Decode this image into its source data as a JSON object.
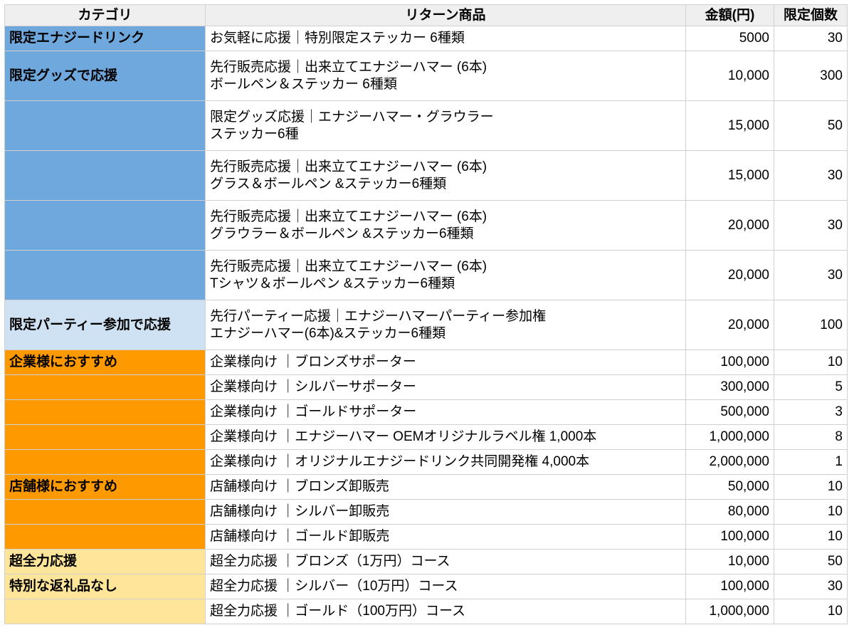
{
  "colors": {
    "blue": "#6fa8dc",
    "light_blue": "#cfe2f3",
    "orange": "#ff9900",
    "yellow": "#ffe599",
    "header": "#efefef"
  },
  "headers": [
    "カテゴリ",
    "リターン商品",
    "金額(円)",
    "限定個数"
  ],
  "rows": [
    {
      "category": "限定エナジードリンク",
      "color": "blue",
      "item": [
        "お気軽に応援｜特別限定ステッカー 6種類"
      ],
      "price": "5000",
      "limit": "30"
    },
    {
      "category": "限定グッズで応援",
      "color": "blue",
      "item": [
        "先行販売応援｜出来立てエナジーハマー (6本)",
        "ボールペン＆ステッカー 6種類"
      ],
      "price": "10,000",
      "limit": "300"
    },
    {
      "category": "",
      "color": "blue",
      "item": [
        "限定グッズ応援｜エナジーハマー・グラウラー",
        "ステッカー6種"
      ],
      "price": "15,000",
      "limit": "50"
    },
    {
      "category": "",
      "color": "blue",
      "item": [
        "先行販売応援｜出来立てエナジーハマー (6本)",
        "グラス＆ボールペン &ステッカー6種類"
      ],
      "price": "15,000",
      "limit": "30"
    },
    {
      "category": "",
      "color": "blue",
      "item": [
        "先行販売応援｜出来立てエナジーハマー (6本)",
        "グラウラー＆ボールペン &ステッカー6種類"
      ],
      "price": "20,000",
      "limit": "30"
    },
    {
      "category": "",
      "color": "blue",
      "item": [
        "先行販売応援｜出来立てエナジーハマー (6本)",
        "Tシャツ＆ボールペン &ステッカー6種類"
      ],
      "price": "20,000",
      "limit": "30"
    },
    {
      "category": "限定パーティー参加で応援",
      "color": "light_blue",
      "item": [
        "先行パーティー応援｜エナジーハマーパーティー参加権",
        "エナジーハマー(6本)&ステッカー6種類"
      ],
      "price": "20,000",
      "limit": "100"
    },
    {
      "category": "企業様におすすめ",
      "color": "orange",
      "item": [
        "企業様向け ｜ブロンズサポーター"
      ],
      "price": "100,000",
      "limit": "10"
    },
    {
      "category": "",
      "color": "orange",
      "item": [
        "企業様向け ｜シルバーサポーター"
      ],
      "price": "300,000",
      "limit": "5"
    },
    {
      "category": "",
      "color": "orange",
      "item": [
        "企業様向け ｜ゴールドサポーター"
      ],
      "price": "500,000",
      "limit": "3"
    },
    {
      "category": "",
      "color": "orange",
      "item": [
        "企業様向け ｜エナジーハマー OEMオリジナルラベル権 1,000本"
      ],
      "price": "1,000,000",
      "limit": "8"
    },
    {
      "category": "",
      "color": "orange",
      "item": [
        "企業様向け ｜オリジナルエナジードリンク共同開発権 4,000本"
      ],
      "price": "2,000,000",
      "limit": "1"
    },
    {
      "category": "店舗様におすすめ",
      "color": "orange",
      "item": [
        "店舗様向け ｜ブロンズ卸販売"
      ],
      "price": "50,000",
      "limit": "10"
    },
    {
      "category": "",
      "color": "orange",
      "item": [
        "店舗様向け ｜シルバー卸販売"
      ],
      "price": "80,000",
      "limit": "10"
    },
    {
      "category": "",
      "color": "orange",
      "item": [
        "店舗様向け ｜ゴールド卸販売"
      ],
      "price": "100,000",
      "limit": "10"
    },
    {
      "category": "超全力応援",
      "color": "yellow",
      "item": [
        "超全力応援 ｜ブロンズ（1万円）コース"
      ],
      "price": "10,000",
      "limit": "50"
    },
    {
      "category": "特別な返礼品なし",
      "color": "yellow",
      "item": [
        "超全力応援 ｜シルバー（10万円）コース"
      ],
      "price": "100,000",
      "limit": "30"
    },
    {
      "category": "",
      "color": "yellow",
      "item": [
        "超全力応援 ｜ゴールド（100万円）コース"
      ],
      "price": "1,000,000",
      "limit": "10"
    }
  ]
}
